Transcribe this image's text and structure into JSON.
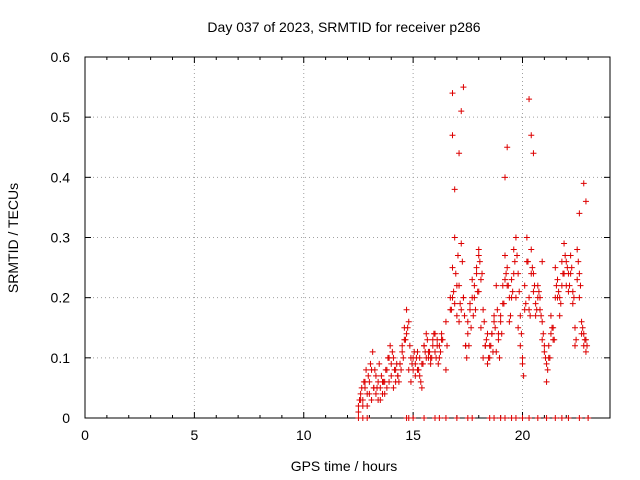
{
  "chart_data": {
    "type": "scatter",
    "title": "Day 037 of 2023, SRMTID for receiver p286",
    "xlabel": "GPS time / hours",
    "ylabel": "SRMTID / TECUs",
    "xlim": [
      0,
      24
    ],
    "ylim": [
      0,
      0.6
    ],
    "x_ticks": [
      0,
      5,
      10,
      15,
      20
    ],
    "x_tick_labels": [
      "0",
      "5",
      "10",
      "15",
      "20"
    ],
    "y_ticks": [
      0,
      0.1,
      0.2,
      0.3,
      0.4,
      0.5,
      0.6
    ],
    "y_tick_labels": [
      "0",
      "0.1",
      "0.2",
      "0.3",
      "0.4",
      "0.5",
      "0.6"
    ],
    "grid": true,
    "marker": "+",
    "series": [
      {
        "name": "SRMTID",
        "color": "#dd0000",
        "x": [
          12.5,
          12.6,
          12.7,
          12.8,
          12.9,
          13.0,
          13.1,
          13.2,
          13.3,
          13.4,
          13.5,
          13.6,
          13.7,
          13.8,
          13.9,
          14.0,
          14.1,
          14.2,
          14.3,
          14.4,
          14.5,
          14.6,
          14.7,
          14.8,
          14.9,
          15.0,
          15.1,
          15.2,
          15.3,
          15.4,
          15.5,
          15.6,
          15.7,
          15.8,
          15.9,
          16.0,
          16.1,
          16.2,
          16.3,
          16.5,
          16.7,
          16.8,
          16.9,
          17.0,
          17.1,
          17.2,
          17.3,
          17.4,
          17.5,
          17.6,
          17.7,
          17.8,
          17.9,
          18.0,
          18.1,
          18.2,
          18.3,
          18.4,
          18.5,
          18.6,
          18.7,
          18.8,
          18.9,
          19.0,
          19.1,
          19.2,
          19.3,
          19.4,
          19.5,
          19.6,
          19.7,
          19.8,
          19.9,
          20.0,
          20.1,
          20.2,
          20.3,
          20.4,
          20.5,
          20.6,
          20.7,
          20.8,
          20.9,
          21.0,
          21.1,
          21.2,
          21.3,
          21.4,
          21.5,
          21.6,
          21.7,
          21.8,
          21.9,
          22.0,
          22.1,
          22.2,
          22.3,
          22.4,
          22.5,
          22.6,
          22.7,
          22.8,
          22.9,
          12.5,
          12.6,
          12.7,
          12.8,
          12.9,
          13.0,
          13.1,
          13.2,
          13.3,
          13.4,
          13.5,
          13.6,
          13.7,
          13.8,
          13.9,
          14.0,
          14.1,
          14.2,
          14.3,
          14.4,
          14.5,
          14.6,
          14.7,
          14.8,
          14.9,
          15.0,
          15.1,
          15.2,
          15.3,
          15.4,
          15.5,
          15.6,
          15.7,
          15.8,
          15.9,
          16.0,
          16.1,
          16.2,
          16.3,
          16.5,
          16.7,
          16.8,
          16.9,
          17.0,
          17.1,
          17.2,
          17.3,
          17.4,
          17.5,
          17.6,
          17.7,
          17.8,
          17.9,
          18.0,
          18.1,
          18.2,
          18.3,
          18.4,
          18.5,
          18.6,
          18.7,
          18.8,
          18.9,
          19.0,
          19.1,
          19.2,
          19.3,
          19.4,
          19.5,
          19.6,
          19.7,
          19.8,
          19.9,
          20.0,
          20.1,
          20.2,
          20.3,
          20.4,
          20.5,
          20.6,
          20.7,
          20.8,
          20.9,
          21.0,
          21.1,
          21.2,
          21.3,
          21.4,
          21.5,
          21.6,
          21.7,
          21.8,
          21.9,
          22.0,
          22.1,
          22.2,
          22.3,
          22.4,
          22.5,
          22.6,
          22.7,
          22.8,
          22.9,
          12.55,
          12.65,
          12.75,
          12.85,
          12.95,
          13.05,
          13.15,
          13.25,
          13.35,
          13.45,
          13.55,
          13.65,
          13.75,
          13.85,
          13.95,
          14.05,
          14.15,
          14.25,
          14.35,
          14.45,
          14.55,
          14.65,
          14.75,
          14.85,
          14.95,
          15.05,
          15.15,
          15.25,
          15.35,
          15.45,
          15.55,
          15.65,
          15.75,
          15.85,
          15.95,
          16.05,
          16.15,
          16.25,
          16.35,
          16.55,
          16.75,
          16.85,
          16.95,
          17.05,
          17.15,
          17.25,
          17.35,
          17.45,
          17.55,
          17.65,
          17.75,
          17.85,
          17.95,
          18.05,
          18.15,
          18.25,
          18.35,
          18.45,
          18.55,
          18.65,
          18.75,
          18.85,
          18.95,
          19.05,
          19.15,
          19.25,
          19.35,
          19.45,
          19.55,
          19.65,
          19.75,
          19.85,
          19.95,
          20.05,
          20.15,
          20.25,
          20.35,
          20.45,
          20.55,
          20.65,
          20.75,
          20.85,
          20.95,
          21.05,
          21.15,
          21.25,
          21.35,
          21.45,
          21.55,
          21.65,
          21.75,
          21.85,
          21.95,
          22.05,
          22.15,
          22.25,
          22.35,
          22.45,
          22.55,
          22.65,
          22.75,
          22.85,
          22.95,
          16.8,
          16.8,
          17.3,
          18.0,
          19.3,
          20.3,
          20.4,
          20.9,
          17.1,
          16.9,
          17.2,
          19.2,
          20.5,
          22.8,
          22.9,
          22.6,
          12.5,
          12.7,
          12.9,
          14.7,
          14.8,
          15.0,
          15.5,
          16.0,
          16.2,
          16.5,
          17.0,
          17.5,
          17.7,
          18.5,
          18.7,
          19.0,
          19.2,
          19.5,
          19.7,
          20.0,
          20.3,
          20.7,
          21.1,
          21.5,
          21.8,
          22.1,
          22.6,
          23.0
        ],
        "y": [
          0.02,
          0.03,
          0.02,
          0.05,
          0.04,
          0.06,
          0.08,
          0.05,
          0.07,
          0.06,
          0.03,
          0.04,
          0.06,
          0.08,
          0.1,
          0.09,
          0.1,
          0.08,
          0.07,
          0.09,
          0.12,
          0.15,
          0.18,
          0.16,
          0.1,
          0.08,
          0.09,
          0.11,
          0.07,
          0.05,
          0.12,
          0.14,
          0.1,
          0.09,
          0.13,
          0.14,
          0.13,
          0.12,
          0.14,
          0.08,
          0.2,
          0.25,
          0.3,
          0.22,
          0.16,
          0.29,
          0.2,
          0.12,
          0.14,
          0.18,
          0.2,
          0.22,
          0.25,
          0.27,
          0.23,
          0.18,
          0.12,
          0.14,
          0.1,
          0.14,
          0.17,
          0.22,
          0.13,
          0.17,
          0.22,
          0.27,
          0.25,
          0.2,
          0.23,
          0.28,
          0.3,
          0.24,
          0.17,
          0.09,
          0.22,
          0.3,
          0.2,
          0.28,
          0.24,
          0.19,
          0.22,
          0.2,
          0.16,
          0.12,
          0.09,
          0.12,
          0.17,
          0.15,
          0.25,
          0.23,
          0.2,
          0.26,
          0.29,
          0.26,
          0.24,
          0.27,
          0.21,
          0.15,
          0.28,
          0.24,
          0.16,
          0.14,
          0.13,
          0.01,
          0.04,
          0.03,
          0.06,
          0.02,
          0.04,
          0.03,
          0.05,
          0.04,
          0.03,
          0.05,
          0.06,
          0.04,
          0.05,
          0.06,
          0.07,
          0.05,
          0.06,
          0.07,
          0.09,
          0.11,
          0.13,
          0.14,
          0.08,
          0.06,
          0.1,
          0.07,
          0.08,
          0.1,
          0.09,
          0.12,
          0.1,
          0.11,
          0.1,
          0.12,
          0.11,
          0.12,
          0.1,
          0.13,
          0.16,
          0.18,
          0.2,
          0.19,
          0.17,
          0.22,
          0.18,
          0.2,
          0.12,
          0.16,
          0.19,
          0.23,
          0.2,
          0.24,
          0.21,
          0.15,
          0.1,
          0.12,
          0.09,
          0.12,
          0.14,
          0.16,
          0.11,
          0.14,
          0.16,
          0.19,
          0.23,
          0.22,
          0.16,
          0.2,
          0.24,
          0.2,
          0.15,
          0.12,
          0.1,
          0.18,
          0.26,
          0.18,
          0.24,
          0.21,
          0.17,
          0.2,
          0.18,
          0.13,
          0.11,
          0.06,
          0.1,
          0.14,
          0.13,
          0.2,
          0.2,
          0.17,
          0.22,
          0.24,
          0.22,
          0.21,
          0.24,
          0.19,
          0.12,
          0.23,
          0.2,
          0.14,
          0.12,
          0.11,
          0.03,
          0.05,
          0.06,
          0.08,
          0.07,
          0.09,
          0.11,
          0.08,
          0.05,
          0.09,
          0.07,
          0.06,
          0.08,
          0.1,
          0.12,
          0.11,
          0.08,
          0.09,
          0.06,
          0.08,
          0.1,
          0.13,
          0.15,
          0.12,
          0.09,
          0.11,
          0.1,
          0.08,
          0.06,
          0.09,
          0.11,
          0.13,
          0.11,
          0.1,
          0.14,
          0.1,
          0.09,
          0.11,
          0.13,
          0.12,
          0.18,
          0.21,
          0.24,
          0.27,
          0.19,
          0.26,
          0.17,
          0.1,
          0.12,
          0.15,
          0.17,
          0.18,
          0.21,
          0.26,
          0.24,
          0.16,
          0.13,
          0.1,
          0.12,
          0.11,
          0.15,
          0.18,
          0.1,
          0.14,
          0.19,
          0.24,
          0.22,
          0.17,
          0.21,
          0.26,
          0.27,
          0.21,
          0.14,
          0.07,
          0.19,
          0.26,
          0.17,
          0.25,
          0.22,
          0.18,
          0.21,
          0.17,
          0.14,
          0.1,
          0.08,
          0.1,
          0.15,
          0.13,
          0.22,
          0.21,
          0.19,
          0.24,
          0.27,
          0.25,
          0.22,
          0.25,
          0.2,
          0.13,
          0.26,
          0.22,
          0.15,
          0.13,
          0.12,
          0.54,
          0.47,
          0.55,
          0.28,
          0.45,
          0.53,
          0.47,
          0.26,
          0.44,
          0.38,
          0.51,
          0.4,
          0.44,
          0.39,
          0.36,
          0.34,
          0,
          0,
          0,
          0,
          0,
          0,
          0,
          0,
          0,
          0,
          0,
          0,
          0,
          0,
          0,
          0,
          0,
          0,
          0,
          0,
          0,
          0,
          0,
          0,
          0,
          0,
          0,
          0
        ]
      }
    ]
  }
}
